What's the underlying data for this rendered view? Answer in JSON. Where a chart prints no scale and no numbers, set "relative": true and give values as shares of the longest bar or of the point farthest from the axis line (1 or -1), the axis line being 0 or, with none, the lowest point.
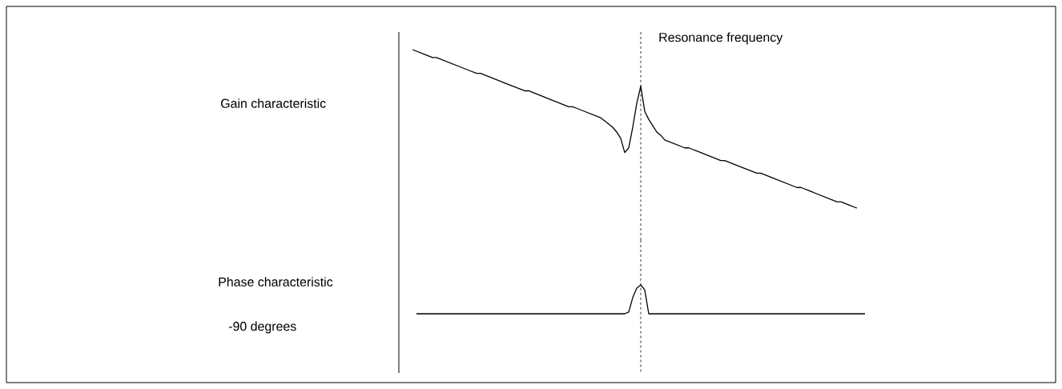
{
  "chart_data": [
    {
      "type": "line",
      "relative": true,
      "ylabel": "Gain characteristic",
      "color": "#000000",
      "tick_labels": false,
      "categories": [
        null,
        null,
        null,
        null,
        null,
        null,
        null,
        null,
        null,
        null,
        null,
        null,
        null,
        null,
        null,
        null,
        null,
        null,
        null,
        null,
        null,
        null,
        null,
        null,
        null,
        null,
        null,
        null,
        null,
        null,
        null,
        null,
        null,
        null,
        null,
        null,
        null,
        null,
        null,
        null,
        null,
        null,
        null,
        null,
        null,
        null,
        null,
        null,
        null,
        null,
        null,
        null,
        null,
        null,
        null,
        null,
        null,
        null,
        null,
        null,
        null,
        null,
        null,
        null,
        null,
        null,
        null,
        null,
        null,
        null,
        null,
        null,
        null,
        null,
        null,
        null,
        null,
        null,
        null,
        null,
        null,
        null,
        null,
        null,
        null,
        null,
        null,
        null,
        null,
        null,
        null,
        null,
        null,
        null,
        null,
        null,
        null,
        null,
        null,
        null,
        null,
        null,
        null,
        null,
        null,
        null,
        null,
        null,
        null,
        null,
        null,
        null
      ],
      "values": [
        1,
        0.99,
        0.98,
        0.97,
        0.96,
        0.95,
        0.95,
        0.94,
        0.93,
        0.92,
        0.91,
        0.9,
        0.89,
        0.88,
        0.87,
        0.86,
        0.85,
        0.85,
        0.84,
        0.83,
        0.82,
        0.81,
        0.8,
        0.79,
        0.78,
        0.77,
        0.76,
        0.75,
        0.74,
        0.74,
        0.73,
        0.72,
        0.71,
        0.7,
        0.69,
        0.68,
        0.67,
        0.66,
        0.65,
        0.64,
        0.64,
        0.63,
        0.62,
        0.61,
        0.6,
        0.59,
        0.58,
        0.57,
        0.55,
        0.53,
        0.51,
        0.48,
        0.44,
        0.35,
        0.38,
        0.51,
        0.66,
        0.77,
        0.61,
        0.56,
        0.52,
        0.48,
        0.46,
        0.43,
        0.42,
        0.41,
        0.4,
        0.39,
        0.38,
        0.38,
        0.37,
        0.36,
        0.35,
        0.34,
        0.33,
        0.32,
        0.31,
        0.3,
        0.3,
        0.29,
        0.28,
        0.27,
        0.26,
        0.25,
        0.24,
        0.23,
        0.22,
        0.22,
        0.21,
        0.2,
        0.19,
        0.18,
        0.17,
        0.16,
        0.15,
        0.14,
        0.13,
        0.13,
        0.12,
        0.11,
        0.1,
        0.09,
        0.08,
        0.07,
        0.06,
        0.05,
        0.04,
        0.04,
        0.03,
        0.02,
        0.01,
        0
      ],
      "annotations": [
        "Resonance frequency"
      ],
      "line_style": "solid"
    },
    {
      "type": "line",
      "relative": true,
      "ylabel": "Phase characteristic",
      "annotations": [
        "-90 degrees"
      ],
      "color": "#000000",
      "tick_labels": false,
      "categories": [
        null,
        null,
        null,
        null,
        null,
        null,
        null,
        null,
        null,
        null,
        null,
        null,
        null,
        null,
        null,
        null,
        null,
        null,
        null,
        null,
        null,
        null,
        null,
        null,
        null,
        null,
        null,
        null,
        null,
        null,
        null,
        null,
        null,
        null,
        null,
        null,
        null,
        null,
        null,
        null,
        null,
        null,
        null,
        null,
        null,
        null,
        null,
        null,
        null,
        null,
        null,
        null,
        null,
        null,
        null,
        null,
        null,
        null,
        null,
        null,
        null,
        null,
        null,
        null,
        null,
        null,
        null,
        null,
        null,
        null,
        null,
        null,
        null,
        null,
        null,
        null,
        null,
        null,
        null,
        null,
        null,
        null,
        null,
        null,
        null,
        null,
        null,
        null,
        null,
        null,
        null,
        null,
        null,
        null,
        null,
        null,
        null,
        null,
        null,
        null,
        null,
        null,
        null,
        null,
        null,
        null,
        null,
        null,
        null,
        null,
        null,
        null,
        null
      ],
      "values": [
        0,
        0,
        0,
        0,
        0,
        0,
        0,
        0,
        0,
        0,
        0,
        0,
        0,
        0,
        0,
        0,
        0,
        0,
        0,
        0,
        0,
        0,
        0,
        0,
        0,
        0,
        0,
        0,
        0,
        0,
        0,
        0,
        0,
        0,
        0,
        0,
        0,
        0,
        0,
        0,
        0,
        0,
        0,
        0,
        0,
        0,
        0,
        0,
        0,
        0,
        0,
        0,
        0,
        0.06,
        0.56,
        0.89,
        1,
        0.83,
        0,
        0,
        0,
        0,
        0,
        0,
        0,
        0,
        0,
        0,
        0,
        0,
        0,
        0,
        0,
        0,
        0,
        0,
        0,
        0,
        0,
        0,
        0,
        0,
        0,
        0,
        0,
        0,
        0,
        0,
        0,
        0,
        0,
        0,
        0,
        0,
        0,
        0,
        0,
        0,
        0,
        0,
        0,
        0,
        0,
        0,
        0,
        0,
        0,
        0,
        0,
        0,
        0,
        0,
        0
      ],
      "line_style": "solid"
    }
  ]
}
